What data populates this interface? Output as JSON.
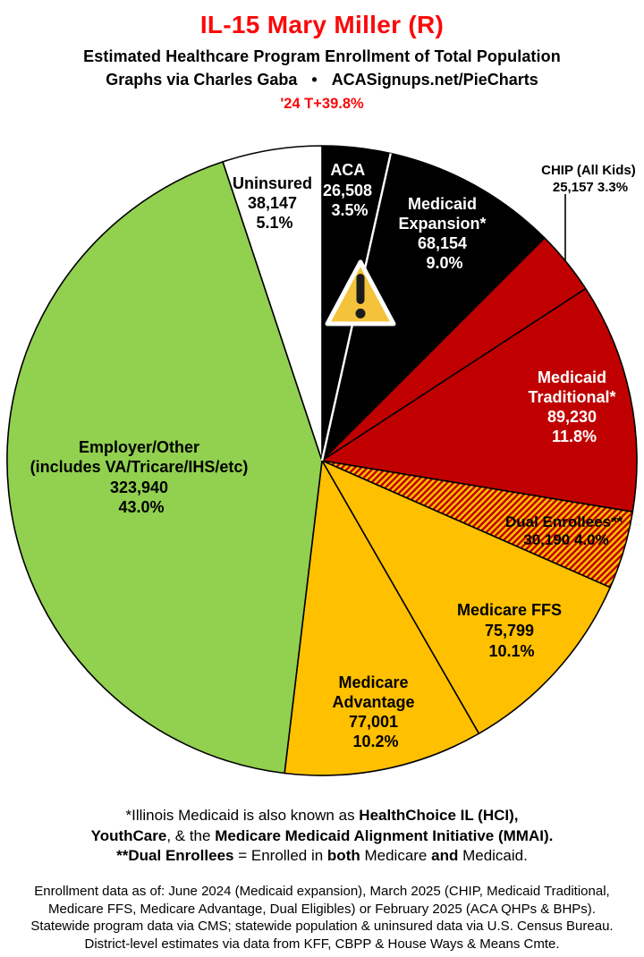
{
  "header": {
    "title": "IL-15 Mary Miller (R)",
    "subtitle": "Estimated Healthcare Program Enrollment of Total Population",
    "attribution": "Graphs via Charles Gaba",
    "bullet": "•",
    "site": "ACASignups.net/PieCharts",
    "delta_stat": "'24 T+39.8%",
    "title_color": "#fa0a0a",
    "subtitle_color": "#000000"
  },
  "chart_data": {
    "type": "pie",
    "title": "Estimated Healthcare Program Enrollment of Total Population",
    "direction": "clockwise",
    "start_angle_deg": 0,
    "legend_position": "labels-on-slices",
    "colors": {
      "black": "#000000",
      "red": "#C00000",
      "gold": "#FFC000",
      "green": "#92D050",
      "white": "#FFFFFF",
      "divider_white": "#FFFFFF",
      "outline": "#000000",
      "warning_triangle": "#F5C33B"
    },
    "slices": [
      {
        "id": "aca",
        "label": "ACA",
        "value": 26508,
        "pct": 3.5,
        "color": "#000000",
        "hatch": false,
        "label_lines": [
          "ACA",
          "26,508",
          "3.5%"
        ]
      },
      {
        "id": "medicaid-expansion",
        "label": "Medicaid Expansion*",
        "value": 68154,
        "pct": 9.0,
        "color": "#000000",
        "hatch": false,
        "label_lines": [
          "Medicaid",
          "Expansion*",
          "68,154",
          "9.0%"
        ]
      },
      {
        "id": "chip",
        "label": "CHIP (All Kids)",
        "value": 25157,
        "pct": 3.3,
        "color": "#C00000",
        "hatch": false,
        "label_lines": [
          "CHIP (All Kids)",
          "25,157 3.3%"
        ]
      },
      {
        "id": "medicaid-traditional",
        "label": "Medicaid Traditional*",
        "value": 89230,
        "pct": 11.8,
        "color": "#C00000",
        "hatch": false,
        "label_lines": [
          "Medicaid",
          "Traditional*",
          "89,230",
          "11.8%"
        ]
      },
      {
        "id": "dual-enrollees",
        "label": "Dual Enrollees**",
        "value": 30190,
        "pct": 4.0,
        "color": "#FFC000",
        "hatch": true,
        "hatch_colors": [
          "#C00000",
          "#FFC000"
        ],
        "label_lines": [
          "Dual Enrollees**",
          "30,190 4.0%"
        ]
      },
      {
        "id": "medicare-ffs",
        "label": "Medicare FFS",
        "value": 75799,
        "pct": 10.1,
        "color": "#FFC000",
        "hatch": false,
        "label_lines": [
          "Medicare FFS",
          "75,799",
          "10.1%"
        ]
      },
      {
        "id": "medicare-advantage",
        "label": "Medicare Advantage",
        "value": 77001,
        "pct": 10.2,
        "color": "#FFC000",
        "hatch": false,
        "label_lines": [
          "Medicare",
          "Advantage",
          "77,001",
          "10.2%"
        ]
      },
      {
        "id": "employer-other",
        "label": "Employer/Other (includes VA/Tricare/IHS/etc)",
        "value": 323940,
        "pct": 43.0,
        "color": "#92D050",
        "hatch": false,
        "label_lines": [
          "Employer/Other",
          "(includes VA/Tricare/IHS/etc)",
          "323,940",
          "43.0%"
        ]
      },
      {
        "id": "uninsured",
        "label": "Uninsured",
        "value": 38147,
        "pct": 5.1,
        "color": "#FFFFFF",
        "hatch": false,
        "label_lines": [
          "Uninsured",
          "38,147",
          "5.1%"
        ]
      }
    ],
    "annotations": {
      "warning_icon_on_slice": "aca",
      "chip_label_outside_with_leader_line": true
    }
  },
  "footnotes": {
    "line1_seg1": "*Illinois Medicaid is also known as ",
    "line1_seg2": "HealthChoice IL (HCI),",
    "line2_seg1": "YouthCare",
    "line2_seg2": ", & the ",
    "line2_seg3": "Medicare Medicaid Alignment Initiative (MMAI).",
    "line3_seg1": "**Dual Enrollees",
    "line3_seg2": " = Enrolled in ",
    "line3_seg3": "both",
    "line3_seg4": " Medicare ",
    "line3_seg5": "and",
    "line3_seg6": " Medicaid."
  },
  "sources": {
    "lines": [
      "Enrollment data as of: June 2024 (Medicaid expansion), March 2025 (CHIP, Medicaid Traditional,",
      "Medicare FFS, Medicare Advantage, Dual Eligibles) or February 2025 (ACA QHPs & BHPs).",
      "Statewide program data via CMS; statewide population & uninsured data via U.S. Census Bureau.",
      "District-level estimates via data from KFF, CBPP & House Ways & Means Cmte."
    ]
  }
}
